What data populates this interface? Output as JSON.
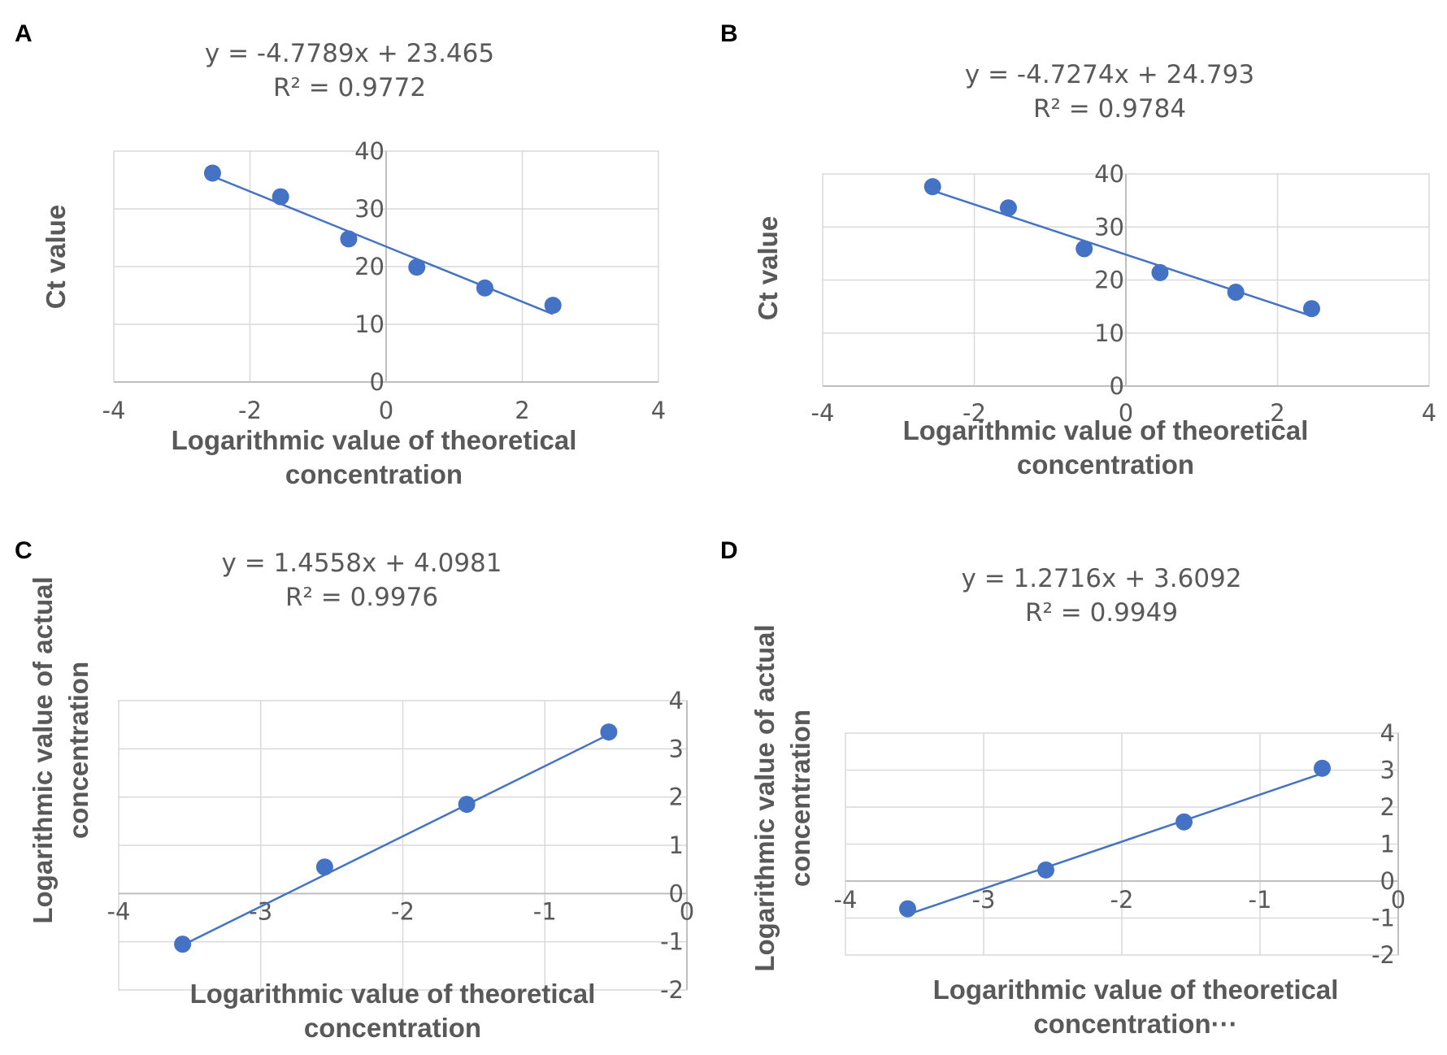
{
  "chart_data": [
    {
      "panel": "A",
      "type": "scatter",
      "equation": "y = -4.7789x + 23.465",
      "r_squared": "R² = 0.9772",
      "xlabel": [
        "Logarithmic value of theoretical",
        "concentration"
      ],
      "ylabel": [
        "Ct value"
      ],
      "xlim": [
        -4,
        4
      ],
      "ylim": [
        0,
        40
      ],
      "xticks": [
        "-4",
        "-2",
        "0",
        "2",
        "4"
      ],
      "yticks": [
        "0",
        "10",
        "20",
        "30",
        "40"
      ],
      "points": [
        [
          -2.55,
          36.2
        ],
        [
          -1.55,
          32.1
        ],
        [
          -0.55,
          24.8
        ],
        [
          0.45,
          19.9
        ],
        [
          1.45,
          16.3
        ],
        [
          2.45,
          13.3
        ]
      ],
      "trendline": {
        "slope": -4.7789,
        "intercept": 23.465,
        "x_range": [
          -2.55,
          2.45
        ]
      }
    },
    {
      "panel": "B",
      "type": "scatter",
      "equation": "y = -4.7274x + 24.793",
      "r_squared": "R² = 0.9784",
      "xlabel": [
        "Logarithmic value of theoretical",
        "concentration"
      ],
      "ylabel": [
        "Ct value"
      ],
      "xlim": [
        -4,
        4
      ],
      "ylim": [
        0,
        40
      ],
      "xticks": [
        "-4",
        "-2",
        "0",
        "2",
        "4"
      ],
      "yticks": [
        "0",
        "10",
        "20",
        "30",
        "40"
      ],
      "points": [
        [
          -2.55,
          37.6
        ],
        [
          -1.55,
          33.6
        ],
        [
          -0.55,
          25.9
        ],
        [
          0.45,
          21.4
        ],
        [
          1.45,
          17.7
        ],
        [
          2.45,
          14.6
        ]
      ],
      "trendline": {
        "slope": -4.7274,
        "intercept": 24.793,
        "x_range": [
          -2.55,
          2.45
        ]
      }
    },
    {
      "panel": "C",
      "type": "scatter",
      "equation": "y = 1.4558x + 4.0981",
      "r_squared": "R² = 0.9976",
      "xlabel": [
        "Logarithmic value of theoretical",
        "concentration"
      ],
      "ylabel": [
        "Logarithmic value of actual",
        "concentration"
      ],
      "xlim": [
        -4,
        0
      ],
      "ylim": [
        -2,
        4
      ],
      "xticks": [
        "-4",
        "-3",
        "-2",
        "-1",
        "0"
      ],
      "yticks": [
        "-2",
        "-1",
        "0",
        "1",
        "2",
        "3",
        "4"
      ],
      "points": [
        [
          -3.55,
          -1.05
        ],
        [
          -2.55,
          0.55
        ],
        [
          -1.55,
          1.85
        ],
        [
          -0.55,
          3.35
        ]
      ],
      "trendline": {
        "slope": 1.4558,
        "intercept": 4.0981,
        "x_range": [
          -3.55,
          -0.55
        ]
      }
    },
    {
      "panel": "D",
      "type": "scatter",
      "equation": "y = 1.2716x + 3.6092",
      "r_squared": "R² = 0.9949",
      "xlabel": [
        "Logarithmic value of theoretical",
        "concentration···"
      ],
      "ylabel": [
        "Logarithmic value of actual",
        "concentration"
      ],
      "xlim": [
        -4,
        0
      ],
      "ylim": [
        -2,
        4
      ],
      "xticks": [
        "-4",
        "-3",
        "-2",
        "-1",
        "0"
      ],
      "yticks": [
        "-2",
        "-1",
        "0",
        "1",
        "2",
        "3",
        "4"
      ],
      "points": [
        [
          -3.55,
          -0.75
        ],
        [
          -2.55,
          0.3
        ],
        [
          -1.55,
          1.6
        ],
        [
          -0.55,
          3.05
        ]
      ],
      "trendline": {
        "slope": 1.2716,
        "intercept": 3.6092,
        "x_range": [
          -3.55,
          -0.55
        ]
      }
    }
  ]
}
